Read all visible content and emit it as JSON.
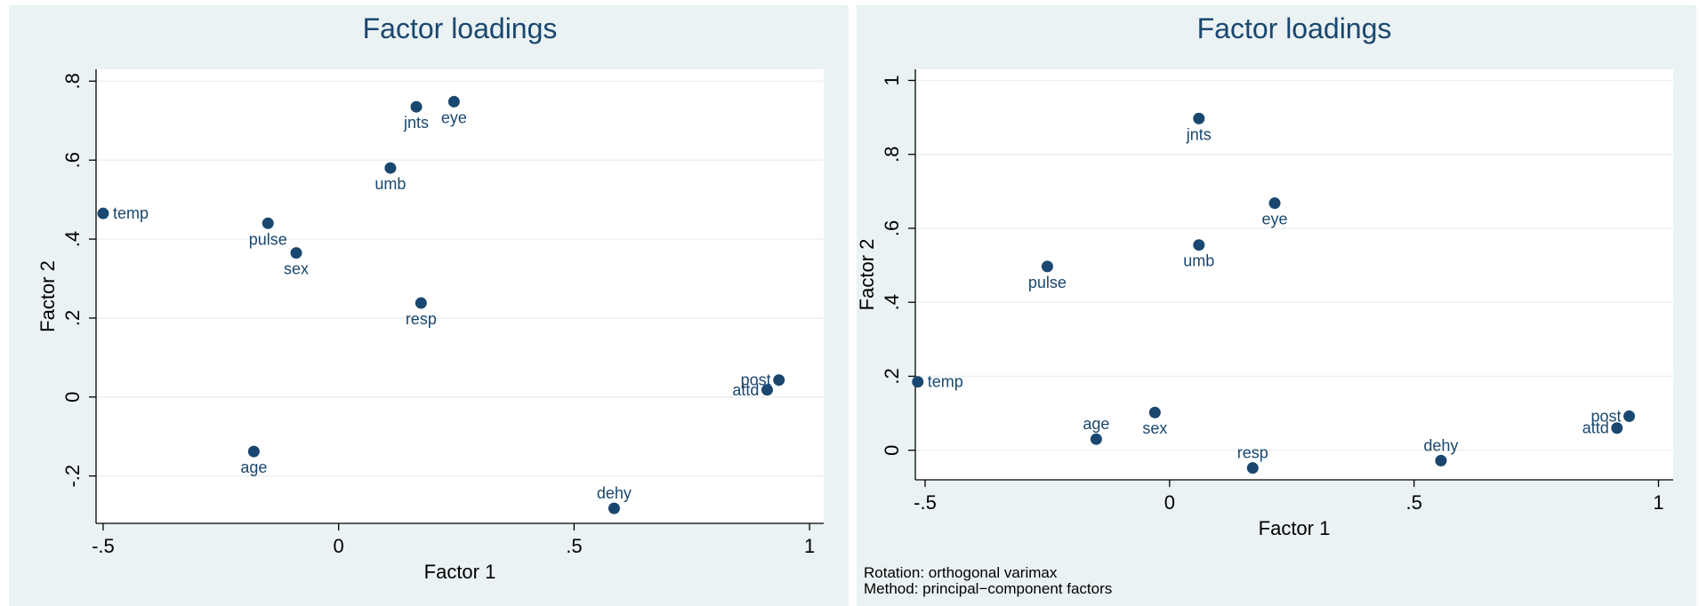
{
  "chart_data": [
    {
      "type": "scatter",
      "title": "Factor loadings",
      "xlabel": "Factor 1",
      "ylabel": "Factor 2",
      "xlim": [
        -0.515,
        1.03
      ],
      "ylim": [
        -0.32,
        0.83
      ],
      "xticks": [
        -0.5,
        0,
        0.5,
        1
      ],
      "xtick_labels": [
        "-.5",
        "0",
        ".5",
        "1"
      ],
      "yticks": [
        -0.2,
        0,
        0.2,
        0.4,
        0.6,
        0.8
      ],
      "ytick_labels": [
        "-.2",
        "0",
        ".2",
        ".4",
        ".6",
        ".8"
      ],
      "grid": true,
      "marker_color": "#1a476f",
      "points": [
        {
          "label": "temp",
          "x": -0.5,
          "y": 0.465,
          "pos": "right"
        },
        {
          "label": "pulse",
          "x": -0.15,
          "y": 0.44,
          "pos": "below"
        },
        {
          "label": "sex",
          "x": -0.09,
          "y": 0.365,
          "pos": "below"
        },
        {
          "label": "umb",
          "x": 0.11,
          "y": 0.58,
          "pos": "below"
        },
        {
          "label": "jnts",
          "x": 0.165,
          "y": 0.735,
          "pos": "below"
        },
        {
          "label": "eye",
          "x": 0.245,
          "y": 0.748,
          "pos": "below"
        },
        {
          "label": "resp",
          "x": 0.175,
          "y": 0.238,
          "pos": "below"
        },
        {
          "label": "age",
          "x": -0.18,
          "y": -0.138,
          "pos": "below"
        },
        {
          "label": "dehy",
          "x": 0.585,
          "y": -0.282,
          "pos": "above"
        },
        {
          "label": "post",
          "x": 0.935,
          "y": 0.043,
          "pos": "left"
        },
        {
          "label": "attd",
          "x": 0.91,
          "y": 0.018,
          "pos": "left"
        }
      ]
    },
    {
      "type": "scatter",
      "title": "Factor loadings",
      "xlabel": "Factor 1",
      "ylabel": "Factor 2",
      "xlim": [
        -0.52,
        1.03
      ],
      "ylim": [
        -0.08,
        1.03
      ],
      "xticks": [
        -0.5,
        0,
        0.5,
        1
      ],
      "xtick_labels": [
        "-.5",
        "0",
        ".5",
        "1"
      ],
      "yticks": [
        0,
        0.2,
        0.4,
        0.6,
        0.8,
        1
      ],
      "ytick_labels": [
        "0",
        ".2",
        ".4",
        ".6",
        ".8",
        "1"
      ],
      "grid": true,
      "marker_color": "#1a476f",
      "points": [
        {
          "label": "temp",
          "x": -0.515,
          "y": 0.185,
          "pos": "right"
        },
        {
          "label": "pulse",
          "x": -0.25,
          "y": 0.497,
          "pos": "below"
        },
        {
          "label": "jnts",
          "x": 0.06,
          "y": 0.897,
          "pos": "below"
        },
        {
          "label": "umb",
          "x": 0.06,
          "y": 0.555,
          "pos": "below"
        },
        {
          "label": "eye",
          "x": 0.215,
          "y": 0.668,
          "pos": "below"
        },
        {
          "label": "age",
          "x": -0.15,
          "y": 0.03,
          "pos": "above"
        },
        {
          "label": "sex",
          "x": -0.03,
          "y": 0.102,
          "pos": "below"
        },
        {
          "label": "resp",
          "x": 0.17,
          "y": -0.048,
          "pos": "above"
        },
        {
          "label": "dehy",
          "x": 0.555,
          "y": -0.028,
          "pos": "above"
        },
        {
          "label": "post",
          "x": 0.94,
          "y": 0.092,
          "pos": "left"
        },
        {
          "label": "attd",
          "x": 0.915,
          "y": 0.06,
          "pos": "left"
        }
      ]
    }
  ],
  "notes": {
    "rotation": "Rotation: orthogonal varimax",
    "method": "Method: principal−component factors"
  }
}
